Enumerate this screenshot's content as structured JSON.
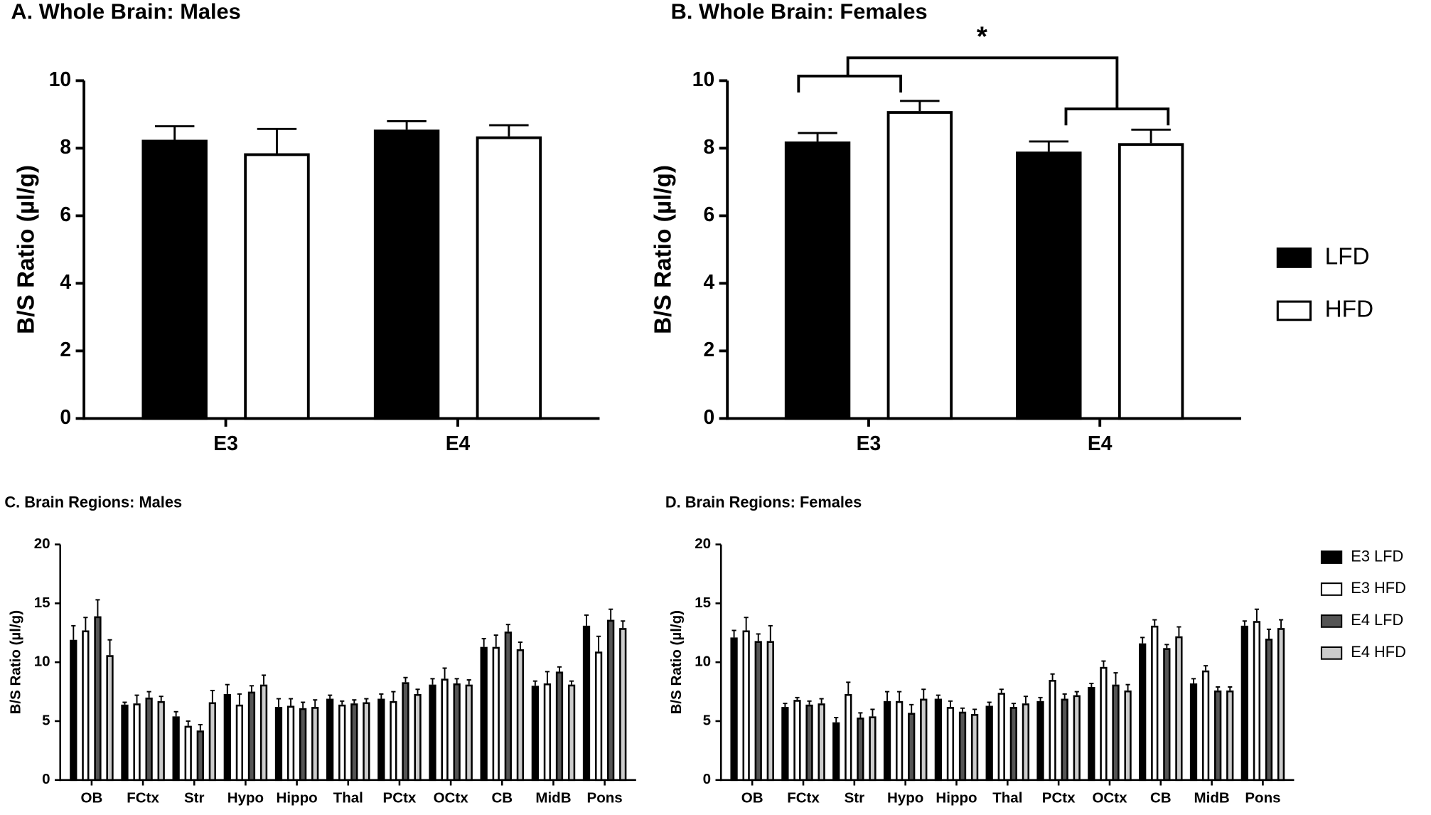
{
  "chart_data": [
    {
      "type": "bar",
      "title": "A. Whole Brain: Males",
      "y_label": "B/S Ratio (µl/g)",
      "categories": [
        "E3",
        "E4"
      ],
      "ylim": [
        0,
        10
      ],
      "yticks": [
        0,
        2,
        4,
        6,
        8,
        10
      ],
      "series": [
        {
          "color": "#000000",
          "values": [
            8.25,
            8.55
          ],
          "errors": [
            0.4,
            0.25
          ]
        },
        {
          "color": "#ffffff",
          "values": [
            7.85,
            8.35
          ],
          "errors": [
            0.72,
            0.33
          ]
        }
      ]
    },
    {
      "type": "bar",
      "title": "B. Whole Brain: Females",
      "y_label": "B/S Ratio (µl/g)",
      "annotation": "*",
      "categories": [
        "E3",
        "E4"
      ],
      "ylim": [
        0,
        10
      ],
      "yticks": [
        0,
        2,
        4,
        6,
        8,
        10
      ],
      "legend": "right",
      "series": [
        {
          "name": "LFD",
          "color": "#000000",
          "values": [
            8.2,
            7.9
          ],
          "errors": [
            0.25,
            0.3
          ]
        },
        {
          "name": "HFD",
          "color": "#ffffff",
          "values": [
            9.1,
            8.15
          ],
          "errors": [
            0.3,
            0.4
          ]
        }
      ]
    },
    {
      "type": "bar",
      "title": "C. Brain Regions: Males",
      "y_label": "B/S Ratio (µl/g)",
      "categories": [
        "OB",
        "FCtx",
        "Str",
        "Hypo",
        "Hippo",
        "Thal",
        "PCtx",
        "OCtx",
        "CB",
        "MidB",
        "Pons"
      ],
      "ylim": [
        0,
        20
      ],
      "yticks": [
        0,
        5,
        10,
        15,
        20
      ],
      "series": [
        {
          "color": "#000000",
          "values": [
            11.9,
            6.4,
            5.4,
            7.3,
            6.2,
            6.9,
            6.9,
            8.1,
            11.3,
            8.0,
            13.1
          ],
          "errors": [
            1.2,
            0.2,
            0.4,
            0.8,
            0.7,
            0.3,
            0.4,
            0.5,
            0.7,
            0.4,
            0.9
          ]
        },
        {
          "color": "#ffffff",
          "values": [
            12.7,
            6.5,
            4.6,
            6.4,
            6.3,
            6.4,
            6.7,
            8.6,
            11.3,
            8.2,
            10.9
          ],
          "errors": [
            1.1,
            0.7,
            0.4,
            0.9,
            0.6,
            0.3,
            0.8,
            0.9,
            1.0,
            1.0,
            1.3
          ]
        },
        {
          "color": "#555555",
          "values": [
            13.9,
            7.0,
            4.2,
            7.5,
            6.1,
            6.5,
            8.3,
            8.2,
            12.6,
            9.2,
            13.6
          ],
          "errors": [
            1.4,
            0.5,
            0.5,
            0.5,
            0.5,
            0.3,
            0.4,
            0.4,
            0.6,
            0.4,
            0.9
          ]
        },
        {
          "color": "#cccccc",
          "values": [
            10.6,
            6.7,
            6.6,
            8.1,
            6.2,
            6.6,
            7.3,
            8.1,
            11.1,
            8.1,
            12.9
          ],
          "errors": [
            1.3,
            0.4,
            1.0,
            0.8,
            0.6,
            0.3,
            0.4,
            0.4,
            0.6,
            0.3,
            0.6
          ]
        }
      ]
    },
    {
      "type": "bar",
      "title": "D. Brain Regions: Females",
      "y_label": "B/S Ratio (µl/g)",
      "categories": [
        "OB",
        "FCtx",
        "Str",
        "Hypo",
        "Hippo",
        "Thal",
        "PCtx",
        "OCtx",
        "CB",
        "MidB",
        "Pons"
      ],
      "ylim": [
        0,
        20
      ],
      "yticks": [
        0,
        5,
        10,
        15,
        20
      ],
      "legend": "right",
      "series": [
        {
          "name": "E3 LFD",
          "color": "#000000",
          "values": [
            12.1,
            6.2,
            4.9,
            6.7,
            6.9,
            6.3,
            6.7,
            7.9,
            11.6,
            8.2,
            13.1
          ],
          "errors": [
            0.6,
            0.3,
            0.4,
            0.8,
            0.3,
            0.3,
            0.3,
            0.3,
            0.5,
            0.4,
            0.4
          ]
        },
        {
          "name": "E3 HFD",
          "color": "#ffffff",
          "values": [
            12.7,
            6.8,
            7.3,
            6.7,
            6.2,
            7.4,
            8.5,
            9.6,
            13.1,
            9.3,
            13.5
          ],
          "errors": [
            1.1,
            0.2,
            1.0,
            0.8,
            0.5,
            0.3,
            0.5,
            0.5,
            0.5,
            0.4,
            1.0
          ]
        },
        {
          "name": "E4 LFD",
          "color": "#555555",
          "values": [
            11.8,
            6.4,
            5.3,
            5.7,
            5.8,
            6.2,
            6.9,
            8.1,
            11.2,
            7.6,
            12.0
          ],
          "errors": [
            0.6,
            0.3,
            0.4,
            0.7,
            0.3,
            0.3,
            0.4,
            1.0,
            0.3,
            0.3,
            0.8
          ]
        },
        {
          "name": "E4 HFD",
          "color": "#cccccc",
          "values": [
            11.8,
            6.5,
            5.4,
            6.9,
            5.6,
            6.5,
            7.2,
            7.6,
            12.2,
            7.6,
            12.9
          ],
          "errors": [
            1.3,
            0.4,
            0.6,
            0.8,
            0.4,
            0.6,
            0.3,
            0.5,
            0.8,
            0.3,
            0.7
          ]
        }
      ]
    }
  ]
}
